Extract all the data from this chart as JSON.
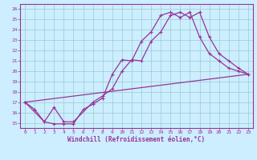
{
  "bg_color": "#cceeff",
  "line_color": "#993399",
  "grid_color": "#99cccc",
  "xlabel": "Windchill (Refroidissement éolien,°C)",
  "xlabel_color": "#993399",
  "ylabel_ticks": [
    15,
    16,
    17,
    18,
    19,
    20,
    21,
    22,
    23,
    24,
    25,
    26
  ],
  "xticks": [
    0,
    1,
    2,
    3,
    4,
    5,
    6,
    7,
    8,
    9,
    10,
    11,
    12,
    13,
    14,
    15,
    16,
    17,
    18,
    19,
    20,
    21,
    22,
    23
  ],
  "xlim": [
    -0.5,
    23.5
  ],
  "ylim": [
    14.5,
    26.5
  ],
  "line1_x": [
    0,
    1,
    2,
    3,
    4,
    5,
    6,
    7,
    8,
    9,
    10,
    11,
    12,
    13,
    14,
    15,
    16,
    17,
    18,
    19,
    20,
    21,
    22,
    23
  ],
  "line1_y": [
    17.0,
    16.3,
    15.1,
    14.9,
    14.9,
    14.9,
    16.3,
    16.8,
    17.4,
    19.7,
    21.1,
    21.0,
    22.9,
    23.8,
    25.4,
    25.7,
    25.2,
    25.7,
    23.3,
    21.7,
    21.0,
    20.3,
    20.0,
    19.7
  ],
  "line2_x": [
    0,
    2,
    3,
    4,
    5,
    7,
    8,
    9,
    10,
    11,
    12,
    13,
    14,
    15,
    16,
    17,
    18,
    19,
    20,
    21,
    22,
    23
  ],
  "line2_y": [
    17.0,
    15.1,
    16.5,
    15.1,
    15.1,
    17.0,
    17.6,
    18.3,
    20.0,
    21.1,
    21.0,
    22.9,
    23.8,
    25.4,
    25.7,
    25.2,
    25.7,
    23.3,
    21.7,
    21.0,
    20.3,
    19.7
  ],
  "line3_x": [
    0,
    23
  ],
  "line3_y": [
    17.0,
    19.7
  ]
}
